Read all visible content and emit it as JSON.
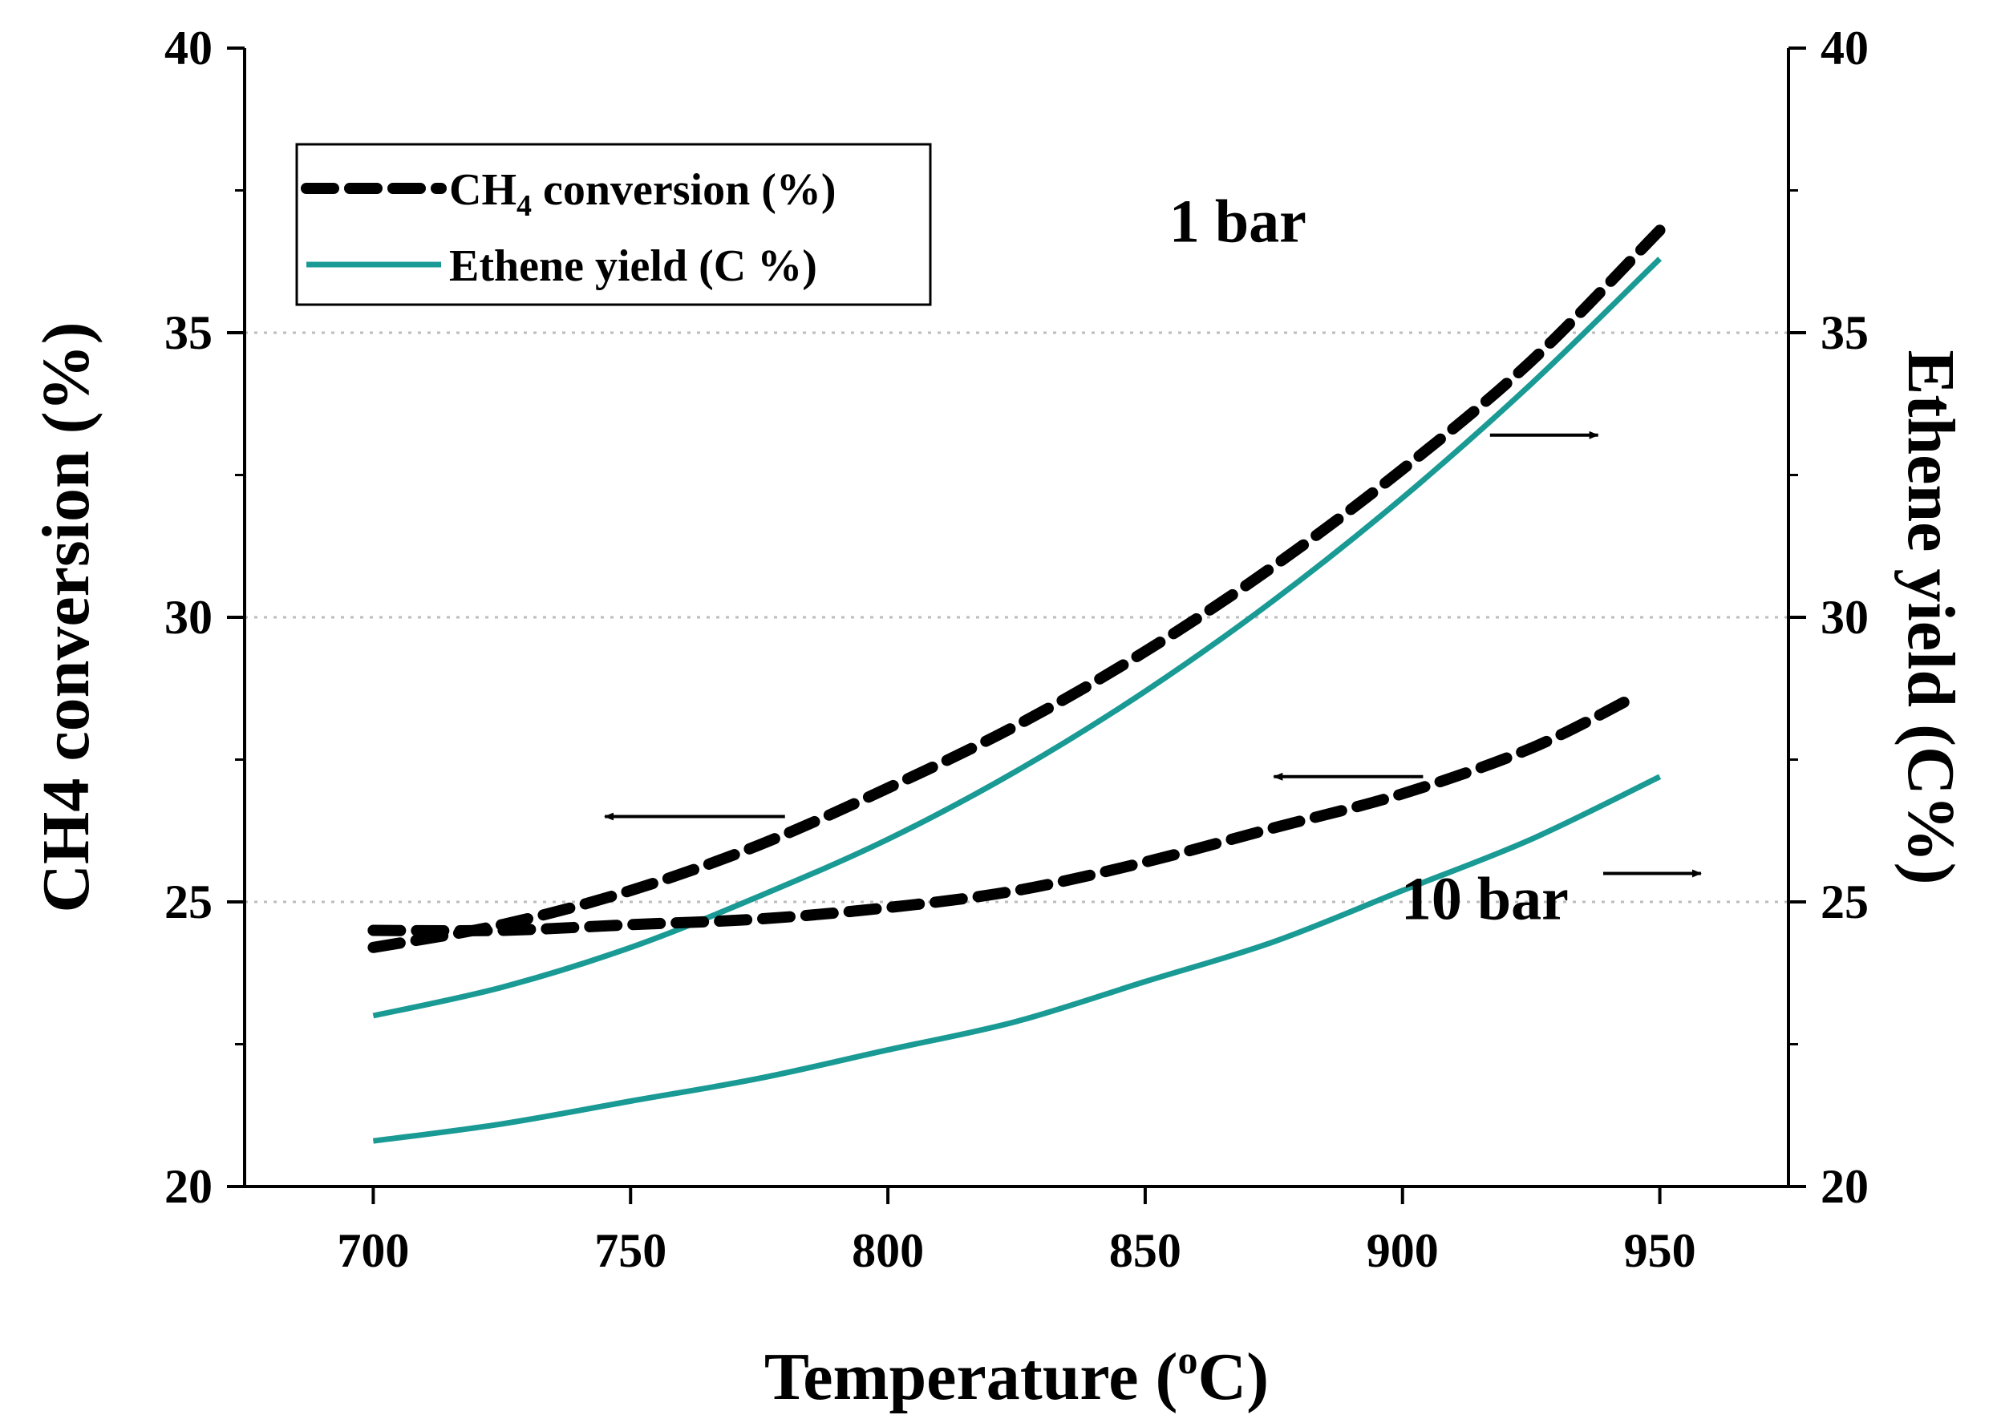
{
  "chart_data": {
    "type": "line",
    "title": "",
    "xlabel": "Temperature (°C)",
    "xlabel_parts": {
      "main": "Temperature (",
      "sup": "o",
      "end": "C)"
    },
    "ylabel": "CH4 conversion (%)",
    "y2label": "Ethene yield (C%)",
    "xlim": [
      675,
      975
    ],
    "ylim": [
      20,
      40
    ],
    "y2lim": [
      20,
      40
    ],
    "x_ticks": [
      700,
      750,
      800,
      850,
      900,
      950
    ],
    "y_ticks": [
      20,
      25,
      30,
      35,
      40
    ],
    "y2_ticks": [
      20,
      25,
      30,
      35,
      40
    ],
    "grid": {
      "y": [
        25,
        30,
        35
      ],
      "style": "dotted",
      "color": "#bdbdbd"
    },
    "legend": {
      "position": "top-left",
      "entries": [
        {
          "label_main": "CH",
          "label_sub": "4",
          "label_rest": " conversion (%)",
          "style": "dashed",
          "color": "#000000"
        },
        {
          "label": "Ethene yield (C %)",
          "style": "solid",
          "color": "#1a9a94"
        }
      ]
    },
    "series": [
      {
        "name": "CH4 conversion 1 bar",
        "axis": "left",
        "style": "dashed",
        "color": "#000000",
        "x": [
          700,
          725,
          750,
          775,
          800,
          825,
          850,
          875,
          900,
          925,
          950
        ],
        "y": [
          24.2,
          24.6,
          25.2,
          26.0,
          27.0,
          28.1,
          29.4,
          30.9,
          32.6,
          34.5,
          36.8
        ]
      },
      {
        "name": "Ethene yield 1 bar",
        "axis": "right",
        "style": "solid",
        "color": "#1a9a94",
        "x": [
          700,
          725,
          750,
          775,
          800,
          825,
          850,
          875,
          900,
          925,
          950
        ],
        "y": [
          23.0,
          23.5,
          24.2,
          25.1,
          26.1,
          27.3,
          28.7,
          30.3,
          32.1,
          34.1,
          36.3
        ]
      },
      {
        "name": "CH4 conversion 10 bar",
        "axis": "left",
        "style": "dashed",
        "color": "#000000",
        "x": [
          700,
          725,
          750,
          775,
          800,
          825,
          850,
          875,
          900,
          925,
          945
        ],
        "y": [
          24.5,
          24.5,
          24.6,
          24.7,
          24.9,
          25.2,
          25.7,
          26.3,
          26.9,
          27.7,
          28.6
        ]
      },
      {
        "name": "Ethene yield 10 bar",
        "axis": "right",
        "style": "solid",
        "color": "#1a9a94",
        "x": [
          700,
          725,
          750,
          775,
          800,
          825,
          850,
          875,
          900,
          925,
          950
        ],
        "y": [
          20.8,
          21.1,
          21.5,
          21.9,
          22.4,
          22.9,
          23.6,
          24.3,
          25.2,
          26.1,
          27.2
        ]
      }
    ],
    "annotations": [
      {
        "text": "1 bar",
        "x": 868,
        "y": 36.6
      },
      {
        "text": "10 bar",
        "x": 916,
        "y": 24.7
      }
    ],
    "arrows": [
      {
        "from": [
          780,
          26.5
        ],
        "to": [
          745,
          26.5
        ],
        "direction": "left",
        "points_to": "left axis"
      },
      {
        "from": [
          917,
          33.2
        ],
        "to": [
          938,
          33.2
        ],
        "direction": "right",
        "points_to": "right axis"
      },
      {
        "from": [
          904,
          27.2
        ],
        "to": [
          875,
          27.2
        ],
        "direction": "left",
        "points_to": "left axis"
      },
      {
        "from": [
          939,
          25.5
        ],
        "to": [
          958,
          25.5
        ],
        "direction": "right",
        "points_to": "right axis"
      }
    ]
  }
}
